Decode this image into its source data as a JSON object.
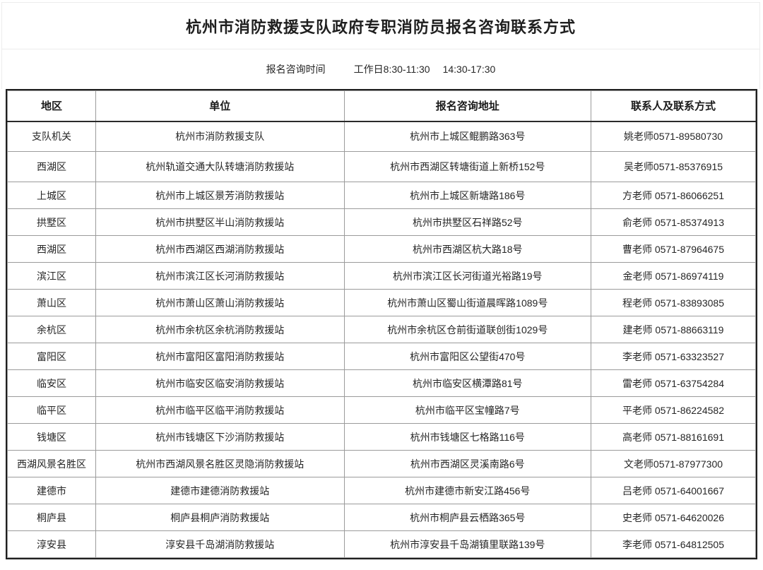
{
  "page": {
    "title": "杭州市消防救援支队政府专职消防员报名咨询联系方式",
    "consult_time_label": "报名咨询时间",
    "consult_time_value_1": "工作日8:30-11:30",
    "consult_time_value_2": "14:30-17:30"
  },
  "table": {
    "columns": [
      "地区",
      "单位",
      "报名咨询地址",
      "联系人及联系方式"
    ],
    "rows": [
      [
        "支队机关",
        "杭州市消防救援支队",
        "杭州市上城区鲲鹏路363号",
        "姚老师0571-89580730"
      ],
      [
        "西湖区",
        "杭州轨道交通大队转塘消防救援站",
        "杭州市西湖区转塘街道上新桥152号",
        "吴老师0571-85376915"
      ],
      [
        "上城区",
        "杭州市上城区景芳消防救援站",
        "杭州市上城区新塘路186号",
        "方老师 0571-86066251"
      ],
      [
        "拱墅区",
        "杭州市拱墅区半山消防救援站",
        "杭州市拱墅区石祥路52号",
        "俞老师 0571-85374913"
      ],
      [
        "西湖区",
        "杭州市西湖区西湖消防救援站",
        "杭州市西湖区杭大路18号",
        "曹老师 0571-87964675"
      ],
      [
        "滨江区",
        "杭州市滨江区长河消防救援站",
        "杭州市滨江区长河街道光裕路19号",
        "金老师 0571-86974119"
      ],
      [
        "萧山区",
        "杭州市萧山区萧山消防救援站",
        "杭州市萧山区蜀山街道晨晖路1089号",
        "程老师 0571-83893085"
      ],
      [
        "余杭区",
        "杭州市余杭区余杭消防救援站",
        "杭州市余杭区仓前街道联创街1029号",
        "建老师 0571-88663119"
      ],
      [
        "富阳区",
        "杭州市富阳区富阳消防救援站",
        "杭州市富阳区公望街470号",
        "李老师 0571-63323527"
      ],
      [
        "临安区",
        "杭州市临安区临安消防救援站",
        "杭州市临安区横潭路81号",
        "雷老师 0571-63754284"
      ],
      [
        "临平区",
        "杭州市临平区临平消防救援站",
        "杭州市临平区宝幢路7号",
        "平老师 0571-86224582"
      ],
      [
        "钱塘区",
        "杭州市钱塘区下沙消防救援站",
        "杭州市钱塘区七格路116号",
        "高老师 0571-88161691"
      ],
      [
        "西湖风景名胜区",
        "杭州市西湖风景名胜区灵隐消防救援站",
        "杭州市西湖区灵溪南路6号",
        "文老师0571-87977300"
      ],
      [
        "建德市",
        "建德市建德消防救援站",
        "杭州市建德市新安江路456号",
        "吕老师 0571-64001667"
      ],
      [
        "桐庐县",
        "桐庐县桐庐消防救援站",
        "杭州市桐庐县云栖路365号",
        "史老师 0571-64620026"
      ],
      [
        "淳安县",
        "淳安县千岛湖消防救援站",
        "杭州市淳安县千岛湖镇里联路139号",
        "李老师 0571-64812505"
      ]
    ]
  },
  "colors": {
    "outer_border": "#1f1f1f",
    "inner_grid": "#9b9b9b",
    "light_frame": "#ececec",
    "text": "#262626",
    "background": "#ffffff"
  }
}
